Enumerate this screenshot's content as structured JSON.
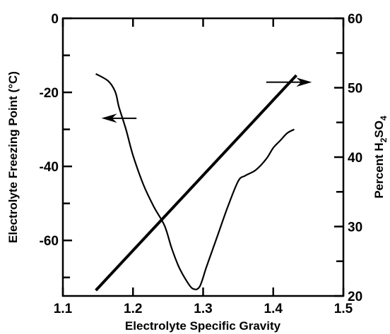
{
  "chart_data": {
    "type": "line",
    "xlabel": "Electrolyte Specific Gravity",
    "ylabel_left": "Electrolyte Freezing Point (°C)",
    "ylabel_right_parts": [
      "Percent H",
      "2",
      "SO",
      "4"
    ],
    "xlim": [
      1.1,
      1.5
    ],
    "ylim_left": [
      -75,
      0
    ],
    "ylim_right": [
      20,
      60
    ],
    "x_ticks": [
      "1.1",
      "1.2",
      "1.3",
      "1.4",
      "1.5"
    ],
    "x_tick_values": [
      1.1,
      1.2,
      1.3,
      1.4,
      1.5
    ],
    "y_left_ticks": [
      "0",
      "-20",
      "-40",
      "-60"
    ],
    "y_left_tick_values": [
      0,
      -20,
      -40,
      -60
    ],
    "y_left_minor_values": [
      -10,
      -30,
      -50,
      -70
    ],
    "y_right_ticks": [
      "60",
      "50",
      "40",
      "30",
      "20"
    ],
    "y_right_tick_values": [
      60,
      50,
      40,
      30,
      20
    ],
    "y_right_minor_values": [
      55,
      45,
      35,
      25
    ],
    "grid": false,
    "series": [
      {
        "axis": "left",
        "style": "curve",
        "points": [
          [
            1.147,
            -15.0
          ],
          [
            1.165,
            -17.0
          ],
          [
            1.175,
            -20.0
          ],
          [
            1.18,
            -24.0
          ],
          [
            1.19,
            -30.0
          ],
          [
            1.2,
            -37.0
          ],
          [
            1.215,
            -45.0
          ],
          [
            1.23,
            -51.0
          ],
          [
            1.245,
            -56.0
          ],
          [
            1.255,
            -62.0
          ],
          [
            1.265,
            -67.0
          ],
          [
            1.275,
            -70.5
          ],
          [
            1.285,
            -73.0
          ],
          [
            1.295,
            -72.5
          ],
          [
            1.305,
            -67.0
          ],
          [
            1.32,
            -59.0
          ],
          [
            1.335,
            -51.0
          ],
          [
            1.35,
            -44.0
          ],
          [
            1.36,
            -42.5
          ],
          [
            1.375,
            -41.0
          ],
          [
            1.39,
            -38.0
          ],
          [
            1.4,
            -35.0
          ],
          [
            1.41,
            -33.0
          ],
          [
            1.42,
            -31.0
          ],
          [
            1.43,
            -30.0
          ]
        ]
      },
      {
        "axis": "right",
        "style": "straight",
        "points": [
          [
            1.147,
            20.8
          ],
          [
            1.433,
            51.8
          ]
        ]
      }
    ],
    "annotations": [
      {
        "type": "arrow",
        "direction": "left",
        "x_from": 1.205,
        "x_to": 1.155,
        "y": -27,
        "axis": "left"
      },
      {
        "type": "arrow",
        "direction": "right",
        "x_from": 1.39,
        "x_to": 1.455,
        "y": 50.8,
        "axis": "right"
      }
    ]
  }
}
